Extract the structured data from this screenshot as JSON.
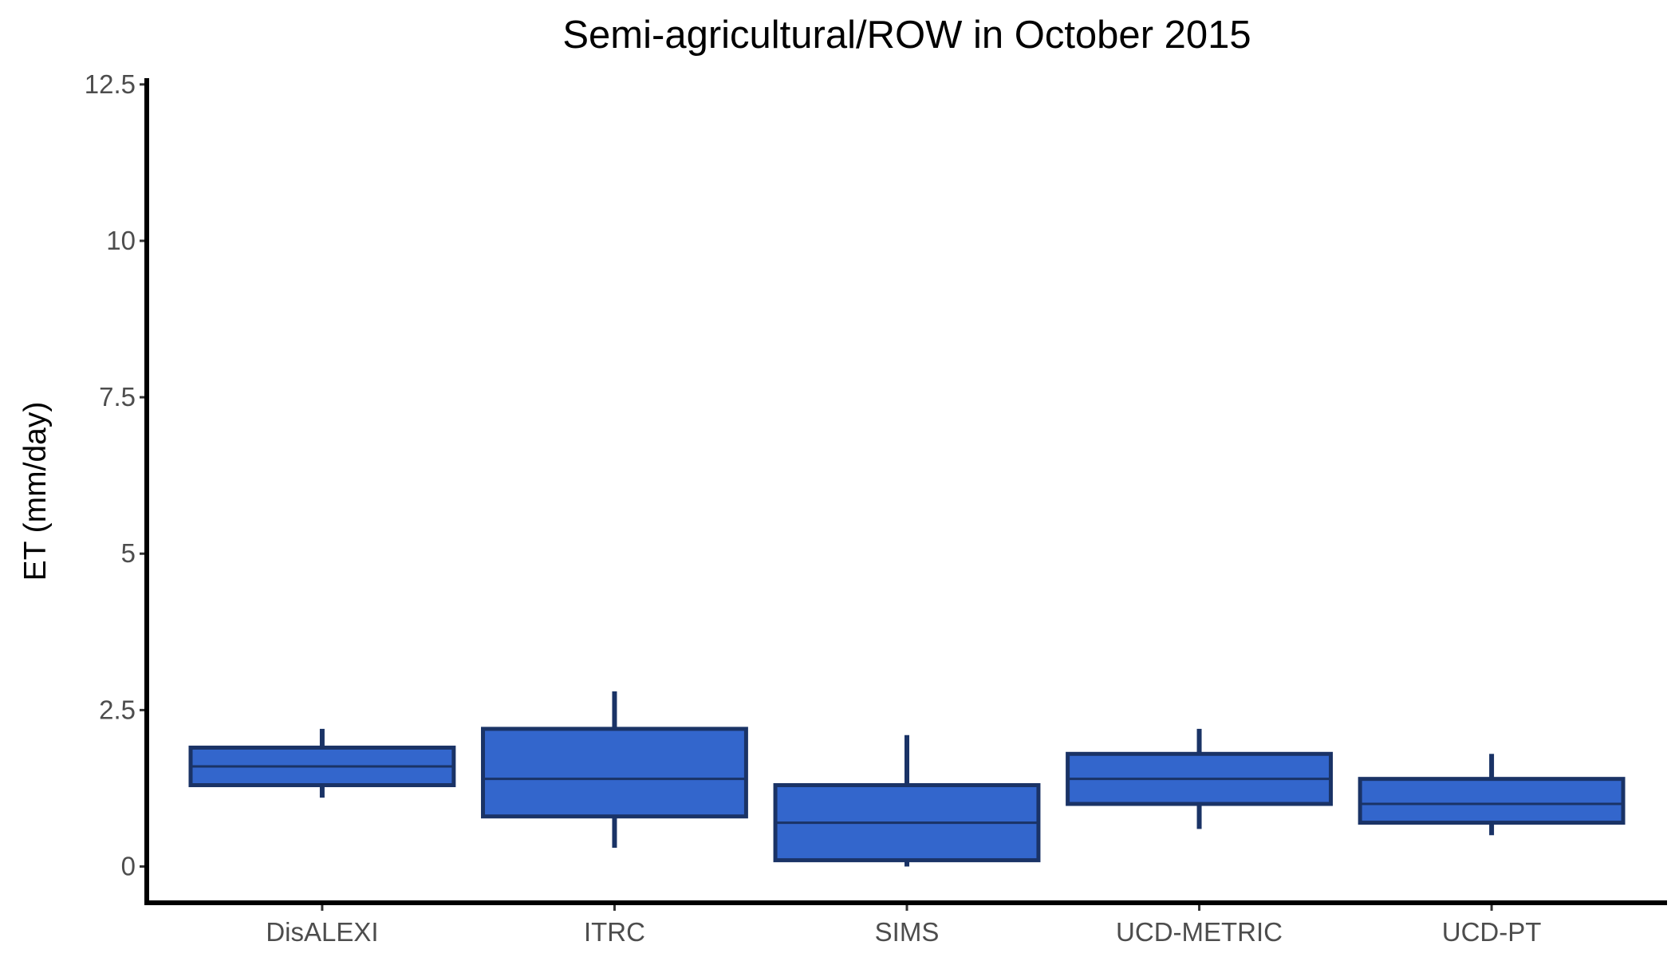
{
  "chart_data": {
    "type": "boxplot",
    "title": "Semi-agricultural/ROW in October 2015",
    "xlabel": "",
    "ylabel": "ET (mm/day)",
    "ylim": [
      -0.58,
      12.6
    ],
    "y_ticks": [
      {
        "value": 0,
        "label": "0"
      },
      {
        "value": 2.5,
        "label": "2.5"
      },
      {
        "value": 5,
        "label": "5"
      },
      {
        "value": 7.5,
        "label": "7.5"
      },
      {
        "value": 10,
        "label": "10"
      },
      {
        "value": 12.5,
        "label": "12.5"
      }
    ],
    "categories": [
      "DisALEXI",
      "ITRC",
      "SIMS",
      "UCD-METRIC",
      "UCD-PT"
    ],
    "boxes": [
      {
        "category": "DisALEXI",
        "min": 1.1,
        "q1": 1.3,
        "median": 1.6,
        "q3": 1.9,
        "max": 2.2
      },
      {
        "category": "ITRC",
        "min": 0.3,
        "q1": 0.8,
        "median": 1.4,
        "q3": 2.2,
        "max": 2.8
      },
      {
        "category": "SIMS",
        "min": 0.0,
        "q1": 0.1,
        "median": 0.7,
        "q3": 1.3,
        "max": 2.1
      },
      {
        "category": "UCD-METRIC",
        "min": 0.6,
        "q1": 1.0,
        "median": 1.4,
        "q3": 1.8,
        "max": 2.2
      },
      {
        "category": "UCD-PT",
        "min": 0.5,
        "q1": 0.7,
        "median": 1.0,
        "q3": 1.4,
        "max": 1.8
      }
    ],
    "grid": false,
    "legend": "none",
    "colors": {
      "box_fill": "#3366cc",
      "box_outline": "#1a3366"
    }
  }
}
